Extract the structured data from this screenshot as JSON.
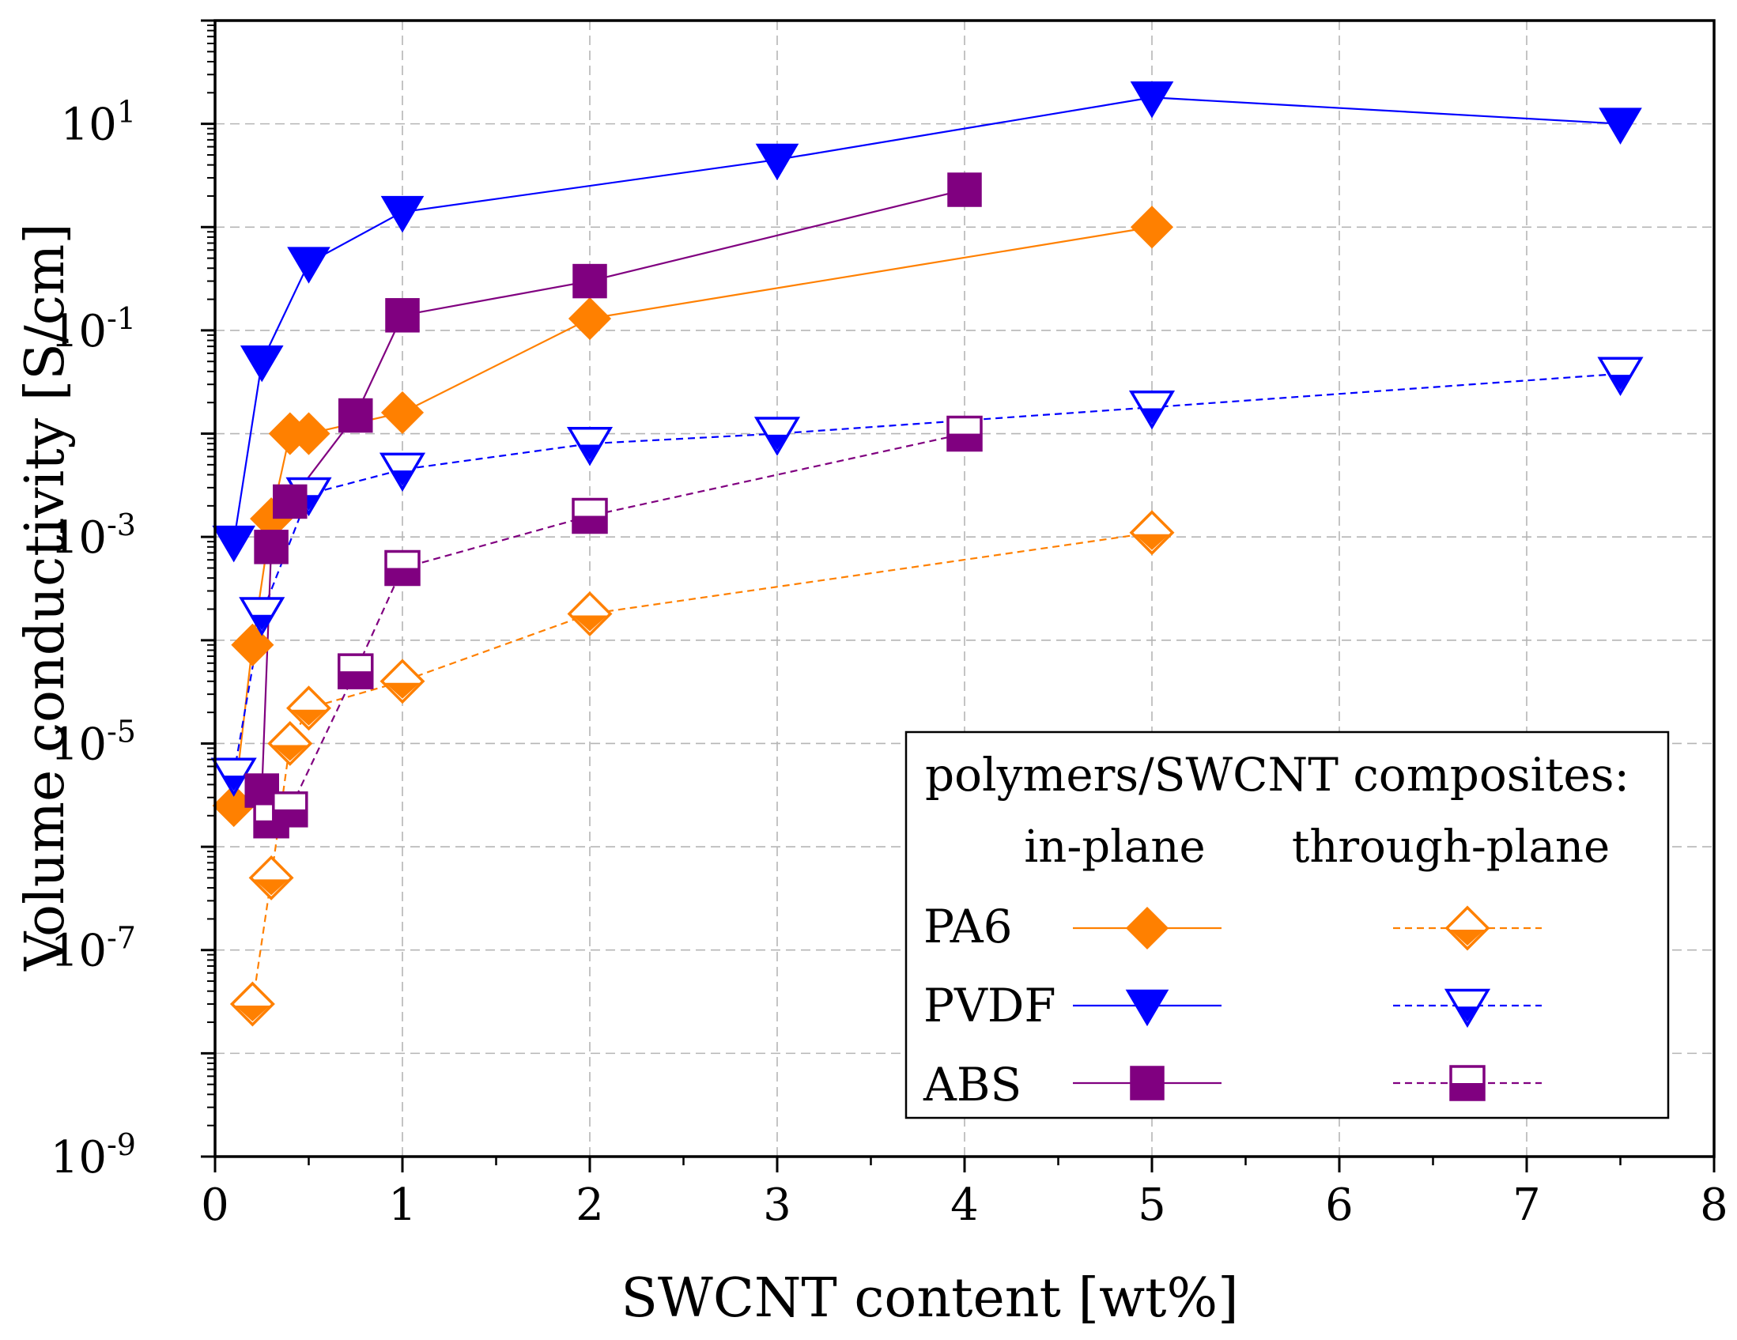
{
  "chart_data": {
    "type": "line",
    "title": "",
    "xlabel": "SWCNT content [wt%]",
    "ylabel": "Volume conductivity [S/cm]",
    "xlim": [
      0,
      8
    ],
    "ylim_log10": [
      -9,
      2
    ],
    "yscale": "log",
    "grid": true,
    "x_ticks": [
      "0",
      "1",
      "2",
      "3",
      "4",
      "5",
      "6",
      "7",
      "8"
    ],
    "y_tick_exponents": [
      "-9",
      "-7",
      "-5",
      "-3",
      "-1",
      "1"
    ],
    "y_tick_base": "10",
    "legend": {
      "position": "bottom-right",
      "title": "polymers/SWCNT composites:",
      "col_in": "in-plane",
      "col_through": "through-plane",
      "rows": [
        "PA6",
        "PVDF",
        "ABS"
      ]
    },
    "colors": {
      "PA6": "#ff8000",
      "PVDF": "#0000ff",
      "ABS": "#800080"
    },
    "series": [
      {
        "name": "PA6 in-plane",
        "polymer": "PA6",
        "orientation": "in-plane",
        "marker": "diamond",
        "filled": true,
        "x": [
          0.1,
          0.2,
          0.3,
          0.4,
          0.5,
          1,
          2,
          5
        ],
        "y": [
          2.5e-06,
          9e-05,
          0.0015,
          0.01,
          0.01,
          0.016,
          0.13,
          1.0
        ]
      },
      {
        "name": "PA6 through-plane",
        "polymer": "PA6",
        "orientation": "through-plane",
        "marker": "diamond",
        "filled": false,
        "x": [
          0.2,
          0.3,
          0.4,
          0.5,
          1,
          2,
          5
        ],
        "y": [
          3e-08,
          5e-07,
          1e-05,
          2.2e-05,
          4e-05,
          0.00018,
          0.0011
        ]
      },
      {
        "name": "PVDF in-plane",
        "polymer": "PVDF",
        "orientation": "in-plane",
        "marker": "triangle-down",
        "filled": true,
        "x": [
          0.1,
          0.25,
          0.5,
          1,
          3,
          5,
          7.5
        ],
        "y": [
          0.0009,
          0.05,
          0.45,
          1.4,
          4.5,
          18,
          10
        ]
      },
      {
        "name": "PVDF through-plane",
        "polymer": "PVDF",
        "orientation": "through-plane",
        "marker": "triangle-down",
        "filled": false,
        "x": [
          0.1,
          0.25,
          0.5,
          1,
          2,
          3,
          5,
          7.5
        ],
        "y": [
          5e-06,
          0.00018,
          0.0026,
          0.0045,
          0.008,
          0.01,
          0.018,
          0.038
        ]
      },
      {
        "name": "ABS in-plane",
        "polymer": "ABS",
        "orientation": "in-plane",
        "marker": "square",
        "filled": true,
        "x": [
          0.25,
          0.3,
          0.4,
          0.75,
          1,
          2,
          4
        ],
        "y": [
          3.5e-06,
          0.0008,
          0.0022,
          0.015,
          0.14,
          0.3,
          2.3
        ]
      },
      {
        "name": "ABS through-plane",
        "polymer": "ABS",
        "orientation": "through-plane",
        "marker": "square",
        "filled": false,
        "x": [
          0.3,
          0.4,
          0.75,
          1,
          2,
          4
        ],
        "y": [
          1.8e-06,
          2.3e-06,
          5e-05,
          0.0005,
          0.0016,
          0.01
        ]
      }
    ]
  }
}
